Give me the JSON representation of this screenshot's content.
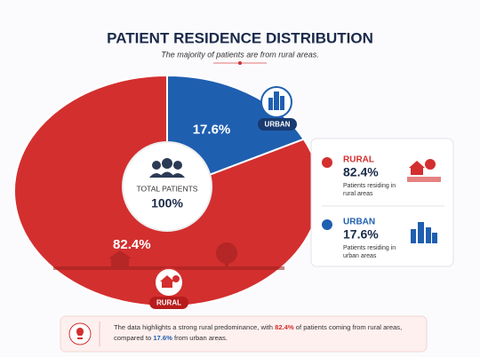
{
  "chart_data": {
    "type": "pie",
    "title": "PATIENT RESIDENCE DISTRIBUTION",
    "subtitle": "The majority of patients are from rural areas.",
    "categories": [
      "RURAL",
      "URBAN"
    ],
    "values": [
      82.4,
      17.6
    ],
    "value_labels": [
      "82.4%",
      "17.6%"
    ],
    "colors": [
      "#d32f2f",
      "#1f5fb0"
    ],
    "descriptions": [
      "Patients residing in rural areas",
      "Patients residing in urban areas"
    ],
    "center_title": "TOTAL PATIENTS",
    "total": 100,
    "total_label": "100%",
    "footer": {
      "before": "The data highlights a strong rural predominance, with ",
      "middle": " of patients coming from rural areas, compared to ",
      "after": " from urban areas."
    }
  }
}
